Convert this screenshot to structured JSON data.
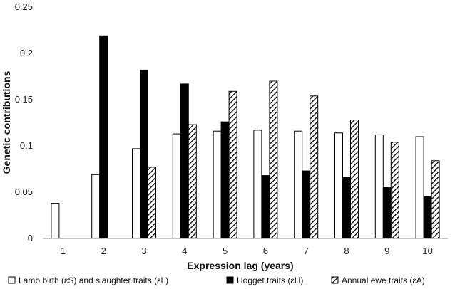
{
  "chart_data": {
    "type": "bar",
    "xlabel": "Expression lag (years)",
    "ylabel": "Genetic contributions",
    "categories": [
      "1",
      "2",
      "3",
      "4",
      "5",
      "6",
      "7",
      "8",
      "9",
      "10"
    ],
    "ylim": [
      0,
      0.25
    ],
    "yticks": [
      0,
      0.05,
      0.1,
      0.15,
      0.2,
      0.25
    ],
    "ytick_labels": [
      "0",
      "0.05",
      "0.1",
      "0.15",
      "0.2",
      "0.25"
    ],
    "grid": false,
    "legend_position": "bottom",
    "series": [
      {
        "name": "Lamb birth (εS) and slaughter traits (εL)",
        "style": "white",
        "values": [
          0.038,
          0.069,
          0.097,
          0.113,
          0.116,
          0.117,
          0.116,
          0.114,
          0.112,
          0.11
        ]
      },
      {
        "name": "Hogget traits (εH)",
        "style": "black",
        "values": [
          0,
          0.219,
          0.182,
          0.167,
          0.126,
          0.068,
          0.073,
          0.066,
          0.055,
          0.045
        ]
      },
      {
        "name": "Annual ewe traits (εA)",
        "style": "hatched",
        "values": [
          0,
          0,
          0.077,
          0.123,
          0.159,
          0.17,
          0.154,
          0.128,
          0.104,
          0.084
        ]
      }
    ]
  },
  "colors": {
    "black_series": "#000000",
    "white_series": "#ffffff",
    "axis": "#888888"
  }
}
